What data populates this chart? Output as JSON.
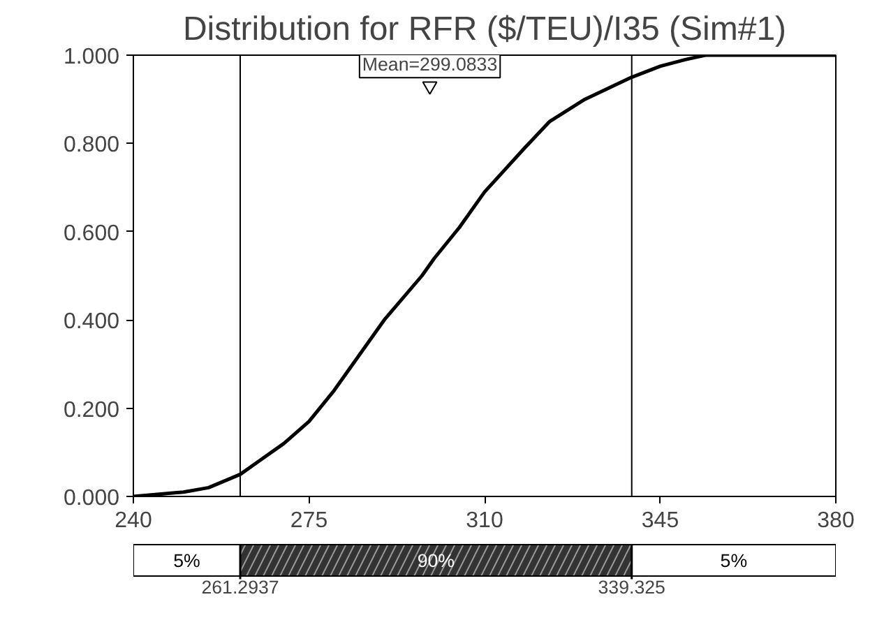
{
  "chart_data": [
    {
      "type": "line",
      "title": "Distribution for RFR ($/TEU)/I35 (Sim#1)",
      "x": [
        240,
        250,
        255,
        261.2937,
        265,
        270,
        275,
        280,
        285,
        290,
        297.5,
        300,
        305,
        310,
        314,
        318,
        323,
        330,
        339.325,
        345,
        350,
        354,
        380
      ],
      "series": [
        {
          "color": "#000000",
          "values": [
            0,
            0.01,
            0.02,
            0.05,
            0.08,
            0.12,
            0.17,
            0.24,
            0.32,
            0.4,
            0.5,
            0.54,
            0.61,
            0.69,
            0.74,
            0.79,
            0.85,
            0.9,
            0.95,
            0.975,
            0.99,
            1.0,
            1.0
          ]
        }
      ],
      "xlim": [
        240,
        380
      ],
      "xticks": [
        240,
        275,
        310,
        345,
        380
      ],
      "ylim": [
        0,
        1
      ],
      "yticks": [
        {
          "value": 0,
          "label": "0.000"
        },
        {
          "value": 0.2,
          "label": "0.200"
        },
        {
          "value": 0.4,
          "label": "0.400"
        },
        {
          "value": 0.6,
          "label": "0.600"
        },
        {
          "value": 0.8,
          "label": "0.800"
        },
        {
          "value": 1,
          "label": "1.000"
        }
      ],
      "annotations": [
        {
          "text": "Mean=299.0833",
          "x": 299.0833,
          "y": 0.93
        }
      ],
      "ref_lines": [
        {
          "axis": "x",
          "value": 261.2937
        },
        {
          "axis": "x",
          "value": 339.325
        }
      ],
      "grid": false,
      "line_style": "solid",
      "marker": "none"
    },
    {
      "type": "other",
      "annotations": [
        "5%",
        "90%",
        "5%",
        "261.2937",
        "339.325"
      ],
      "colors": [
        "#ffffff",
        "#333333",
        "#ffffff"
      ]
    }
  ]
}
